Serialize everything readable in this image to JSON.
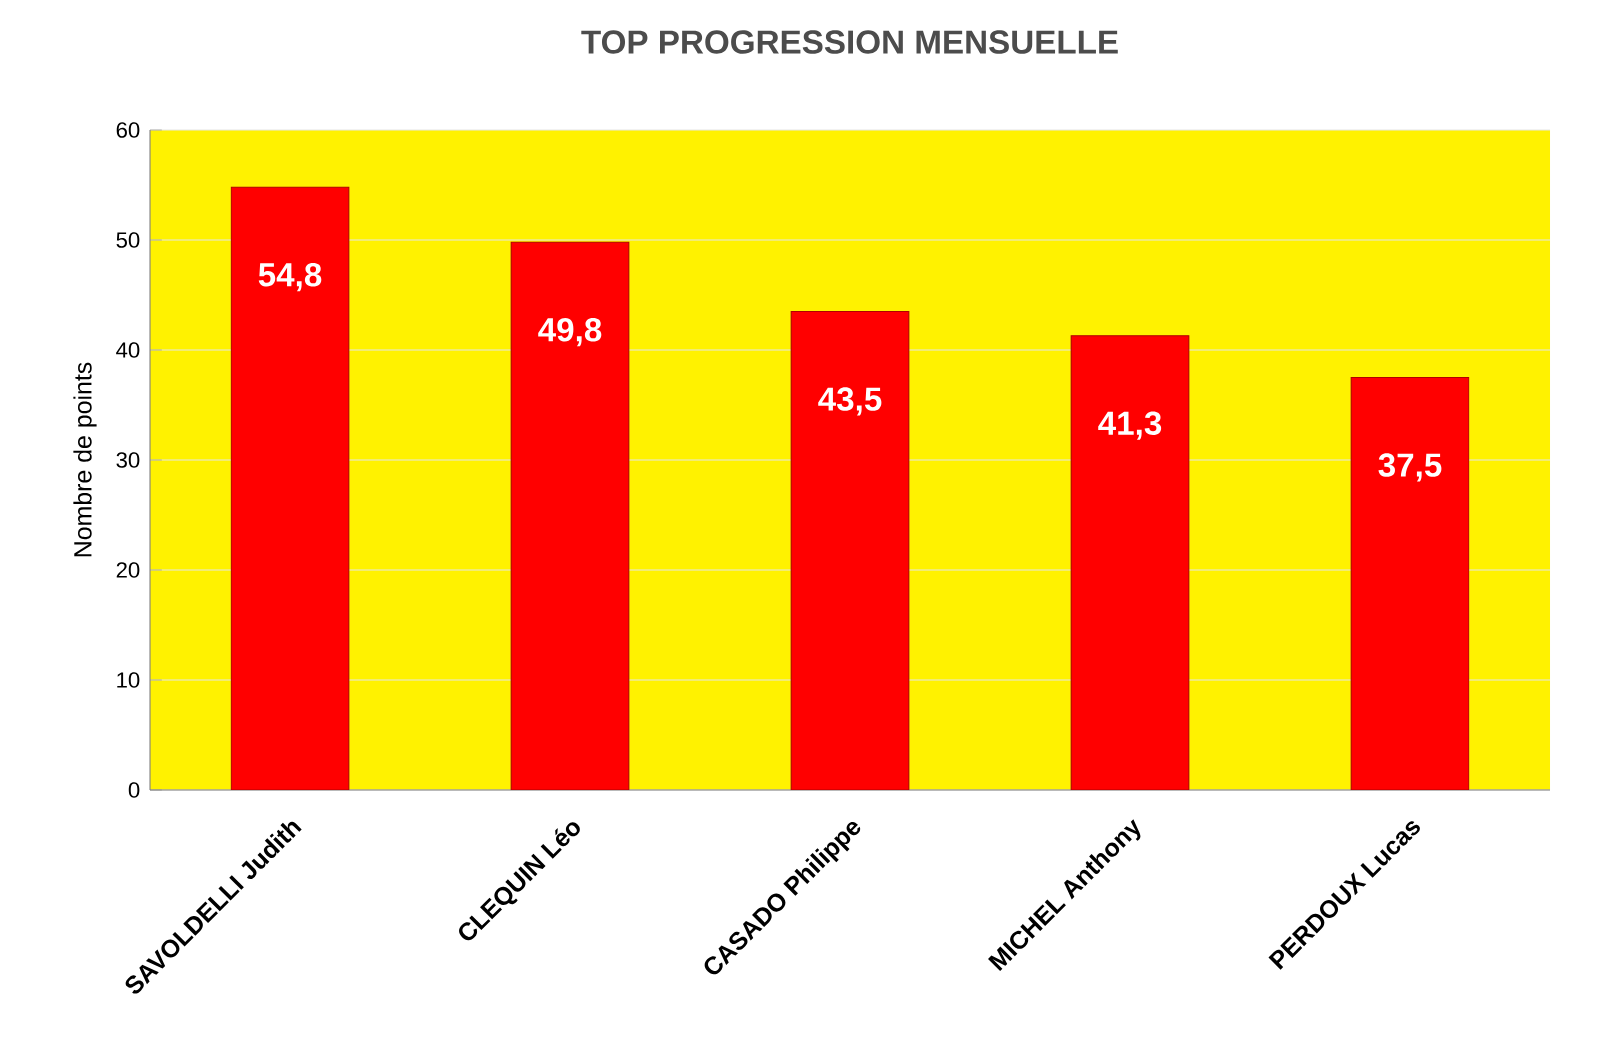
{
  "chart_data": {
    "type": "bar",
    "title": "TOP PROGRESSION MENSUELLE",
    "ylabel": "Nombre de points",
    "categories": [
      "SAVOLDELLI Judith",
      "CLEQUIN Léo",
      "CASADO Philippe",
      "MICHEL Anthony",
      "PERDOUX Lucas"
    ],
    "values": [
      54.8,
      49.8,
      43.5,
      41.3,
      37.5
    ],
    "value_labels": [
      "54,8",
      "49,8",
      "43,5",
      "41,3",
      "37,5"
    ],
    "color": "#ff0000",
    "ylim": [
      0,
      60
    ],
    "yticks": [
      0,
      10,
      20,
      30,
      40,
      50,
      60
    ],
    "grid": "y"
  }
}
